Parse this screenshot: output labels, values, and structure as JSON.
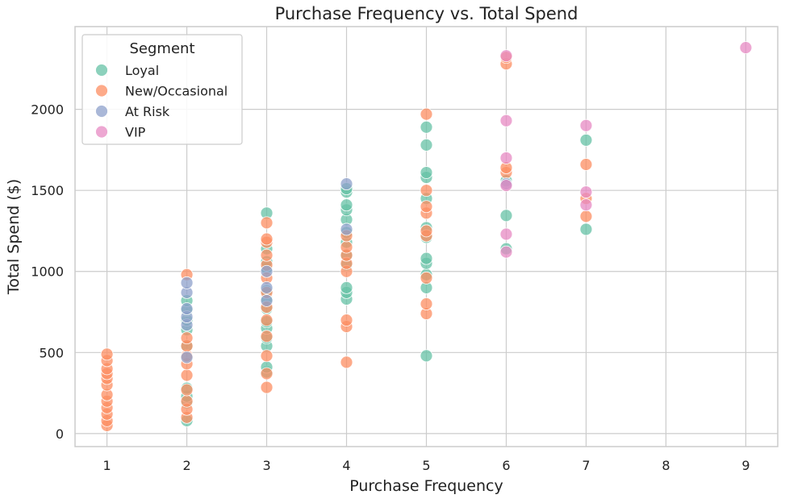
{
  "chart_data": {
    "type": "scatter",
    "title": "Purchase Frequency vs. Total Spend",
    "xlabel": "Purchase Frequency",
    "ylabel": "Total Spend ($)",
    "xlim": [
      0.6,
      9.4
    ],
    "ylim": [
      -80,
      2510
    ],
    "xticks": [
      1,
      2,
      3,
      4,
      5,
      6,
      7,
      8,
      9
    ],
    "yticks": [
      0,
      500,
      1000,
      1500,
      2000
    ],
    "grid": true,
    "legend": {
      "title": "Segment",
      "position": "top-left"
    },
    "series": [
      {
        "name": "Loyal",
        "color": "#66c2a5",
        "points": [
          [
            2,
            80
          ],
          [
            2,
            190
          ],
          [
            2,
            230
          ],
          [
            2,
            280
          ],
          [
            2,
            540
          ],
          [
            2,
            640
          ],
          [
            2,
            700
          ],
          [
            2,
            760
          ],
          [
            2,
            820
          ],
          [
            3,
            380
          ],
          [
            3,
            410
          ],
          [
            3,
            540
          ],
          [
            3,
            590
          ],
          [
            3,
            650
          ],
          [
            3,
            690
          ],
          [
            3,
            770
          ],
          [
            3,
            830
          ],
          [
            3,
            880
          ],
          [
            3,
            1020
          ],
          [
            3,
            1060
          ],
          [
            3,
            1140
          ],
          [
            3,
            1360
          ],
          [
            4,
            830
          ],
          [
            4,
            870
          ],
          [
            4,
            900
          ],
          [
            4,
            1040
          ],
          [
            4,
            1100
          ],
          [
            4,
            1180
          ],
          [
            4,
            1240
          ],
          [
            4,
            1320
          ],
          [
            4,
            1380
          ],
          [
            4,
            1410
          ],
          [
            4,
            1490
          ],
          [
            4,
            1510
          ],
          [
            5,
            480
          ],
          [
            5,
            900
          ],
          [
            5,
            980
          ],
          [
            5,
            1050
          ],
          [
            5,
            1080
          ],
          [
            5,
            1210
          ],
          [
            5,
            1270
          ],
          [
            5,
            1450
          ],
          [
            5,
            1580
          ],
          [
            5,
            1610
          ],
          [
            5,
            1780
          ],
          [
            5,
            1890
          ],
          [
            6,
            1140
          ],
          [
            6,
            1345
          ],
          [
            6,
            1560
          ],
          [
            7,
            1260
          ],
          [
            7,
            1810
          ]
        ]
      },
      {
        "name": "New/Occasional",
        "color": "#fc8d62",
        "points": [
          [
            1,
            50
          ],
          [
            1,
            80
          ],
          [
            1,
            120
          ],
          [
            1,
            160
          ],
          [
            1,
            200
          ],
          [
            1,
            240
          ],
          [
            1,
            300
          ],
          [
            1,
            340
          ],
          [
            1,
            370
          ],
          [
            1,
            400
          ],
          [
            1,
            450
          ],
          [
            1,
            490
          ],
          [
            2,
            100
          ],
          [
            2,
            150
          ],
          [
            2,
            200
          ],
          [
            2,
            270
          ],
          [
            2,
            360
          ],
          [
            2,
            430
          ],
          [
            2,
            480
          ],
          [
            2,
            540
          ],
          [
            2,
            590
          ],
          [
            2,
            980
          ],
          [
            3,
            285
          ],
          [
            3,
            370
          ],
          [
            3,
            480
          ],
          [
            3,
            600
          ],
          [
            3,
            700
          ],
          [
            3,
            780
          ],
          [
            3,
            870
          ],
          [
            3,
            960
          ],
          [
            3,
            1040
          ],
          [
            3,
            1100
          ],
          [
            3,
            1180
          ],
          [
            3,
            1200
          ],
          [
            3,
            1300
          ],
          [
            4,
            440
          ],
          [
            4,
            660
          ],
          [
            4,
            700
          ],
          [
            4,
            1000
          ],
          [
            4,
            1050
          ],
          [
            4,
            1100
          ],
          [
            4,
            1150
          ],
          [
            4,
            1220
          ],
          [
            5,
            740
          ],
          [
            5,
            800
          ],
          [
            5,
            960
          ],
          [
            5,
            1220
          ],
          [
            5,
            1250
          ],
          [
            5,
            1360
          ],
          [
            5,
            1400
          ],
          [
            5,
            1500
          ],
          [
            5,
            1970
          ],
          [
            6,
            1610
          ],
          [
            6,
            1640
          ],
          [
            6,
            2280
          ],
          [
            6,
            2320
          ],
          [
            7,
            1340
          ],
          [
            7,
            1450
          ],
          [
            7,
            1660
          ]
        ]
      },
      {
        "name": "At Risk",
        "color": "#8da0cb",
        "points": [
          [
            2,
            470
          ],
          [
            2,
            670
          ],
          [
            2,
            720
          ],
          [
            2,
            770
          ],
          [
            2,
            870
          ],
          [
            2,
            930
          ],
          [
            3,
            820
          ],
          [
            3,
            900
          ],
          [
            3,
            1000
          ],
          [
            4,
            1260
          ],
          [
            4,
            1540
          ],
          [
            6,
            1540
          ]
        ]
      },
      {
        "name": "VIP",
        "color": "#e78ac3",
        "points": [
          [
            6,
            1120
          ],
          [
            6,
            1230
          ],
          [
            6,
            1530
          ],
          [
            6,
            1700
          ],
          [
            6,
            1930
          ],
          [
            6,
            2330
          ],
          [
            7,
            1410
          ],
          [
            7,
            1490
          ],
          [
            7,
            1900
          ],
          [
            9,
            2380
          ]
        ]
      }
    ]
  }
}
